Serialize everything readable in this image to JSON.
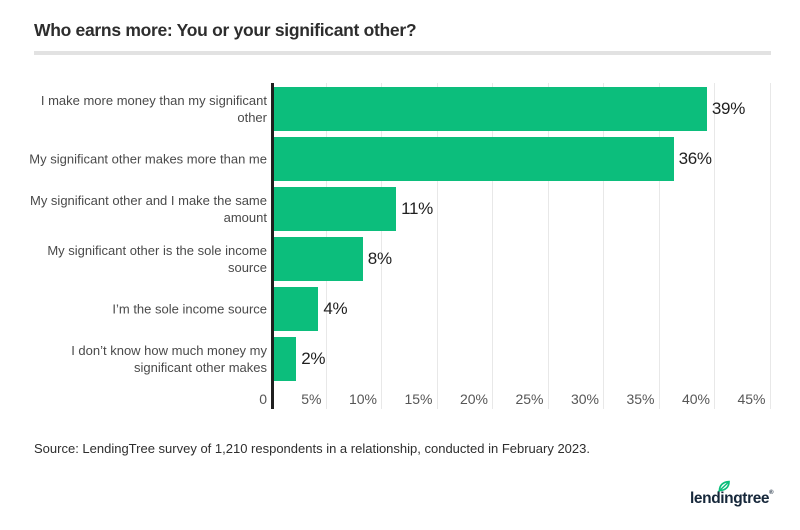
{
  "header": {
    "title": "Who earns more: You or your significant other?"
  },
  "chart_data": {
    "type": "bar",
    "orientation": "horizontal",
    "title": "Who earns more: You or your significant other?",
    "categories": [
      "I make more money than my significant\nother",
      "My significant other makes more than me",
      "My significant other and I make the same\namount",
      "My significant other is the sole income\nsource",
      "I’m the sole income source",
      "I don’t know how much money my\nsignificant other makes"
    ],
    "values": [
      39,
      36,
      11,
      8,
      4,
      2
    ],
    "value_labels": [
      "39%",
      "36%",
      "11%",
      "8%",
      "4%",
      "2%"
    ],
    "x_ticks": [
      "0",
      "5%",
      "10%",
      "15%",
      "20%",
      "25%",
      "30%",
      "35%",
      "40%",
      "45%"
    ],
    "xlim": [
      0,
      45
    ],
    "grid": true,
    "legend": false,
    "bar_color": "#0cbe7c",
    "axis_color": "#1f1f1f",
    "gridline_color": "#e8e8e8"
  },
  "footer": {
    "source": "Source: LendingTree survey of 1,210 respondents in a relationship, conducted in February 2023.",
    "logo_text": "lendingtree",
    "logo_mark": "®",
    "brand_green": "#0cbe7c",
    "brand_navy": "#16273a"
  }
}
